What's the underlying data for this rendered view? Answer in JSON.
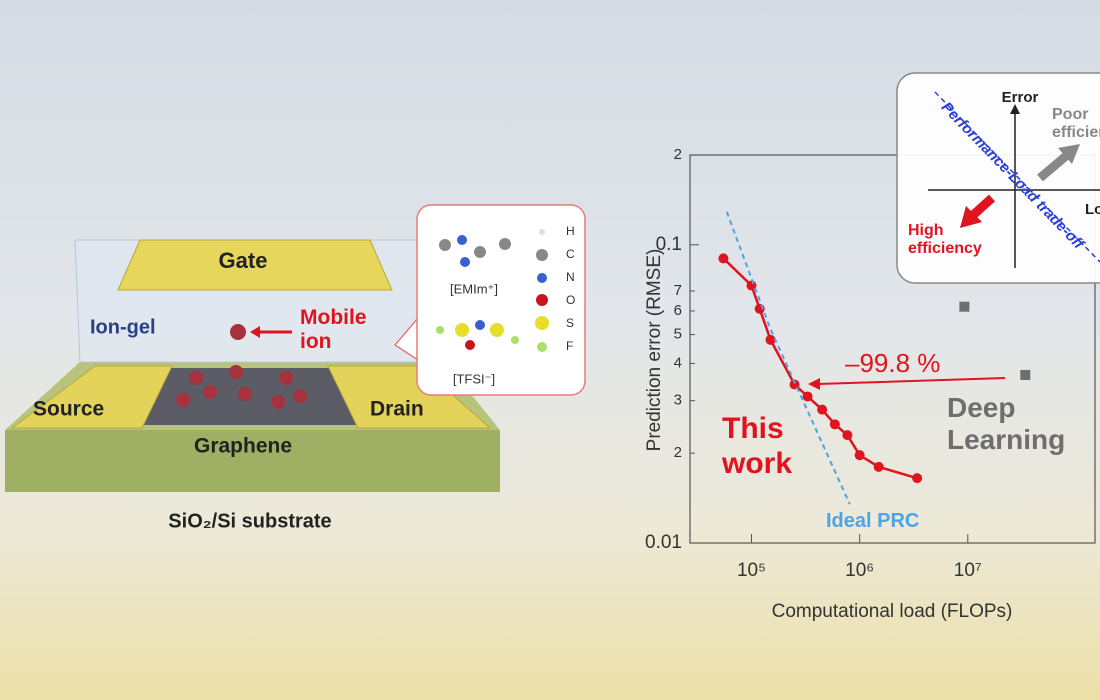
{
  "diagram": {
    "gate": "Gate",
    "ion_gel": "Ion-gel",
    "mobile_ion": "Mobile ion",
    "source": "Source",
    "drain": "Drain",
    "graphene": "Graphene",
    "substrate": "SiO₂/Si substrate",
    "atoms": [
      "H",
      "C",
      "N",
      "O",
      "S",
      "F"
    ],
    "cation": "[EMIm⁺]",
    "anion": "[TFSI⁻]"
  },
  "inset": {
    "y_label": "Error",
    "x_label": "Load",
    "poor": "Poor efficiency",
    "high": "High efficiency",
    "tradeoff": "Performance-Load trade-off"
  },
  "chart_data": {
    "type": "scatter",
    "log_x": true,
    "log_y": true,
    "xlabel": "Computational load (FLOPs)",
    "ylabel": "Prediction error (RMSE)",
    "xlim": [
      27000,
      150000000
    ],
    "ylim": [
      0.01,
      0.2
    ],
    "xticks": [
      {
        "value": 100000,
        "label": "10⁵"
      },
      {
        "value": 1000000,
        "label": "10⁶"
      },
      {
        "value": 10000000,
        "label": "10⁷"
      }
    ],
    "yticks": [
      0.01,
      {
        "value": 0.02,
        "label": "2"
      },
      {
        "value": 0.03,
        "label": "3"
      },
      {
        "value": 0.04,
        "label": "4"
      },
      {
        "value": 0.05,
        "label": "5"
      },
      {
        "value": 0.06,
        "label": "6"
      },
      {
        "value": 0.07,
        "label": "7"
      },
      0.1,
      {
        "value": 0.2,
        "label": "2"
      }
    ],
    "annotation": "–99.8 %",
    "series": [
      {
        "name": "This work",
        "color": "#e0141e",
        "marker": "circle",
        "connected": true,
        "x": [
          55000,
          100000,
          119000,
          150000,
          250000,
          330000,
          450000,
          590000,
          770000,
          1000000,
          1500000,
          3400000
        ],
        "values": [
          0.09,
          0.073,
          0.061,
          0.048,
          0.034,
          0.031,
          0.028,
          0.025,
          0.023,
          0.0197,
          0.018,
          0.0165
        ]
      },
      {
        "name": "Deep Learning",
        "color": "#6e6e6e",
        "marker": "square",
        "connected": false,
        "x": [
          9300000,
          34000000
        ],
        "values": [
          0.062,
          0.0366
        ]
      },
      {
        "name": "Ideal PRC",
        "color": "#4da3e8",
        "marker": "none",
        "connected": true,
        "dashed": true,
        "x": [
          59000,
          147000,
          810000
        ],
        "values": [
          0.129,
          0.053,
          0.0135
        ]
      }
    ]
  }
}
